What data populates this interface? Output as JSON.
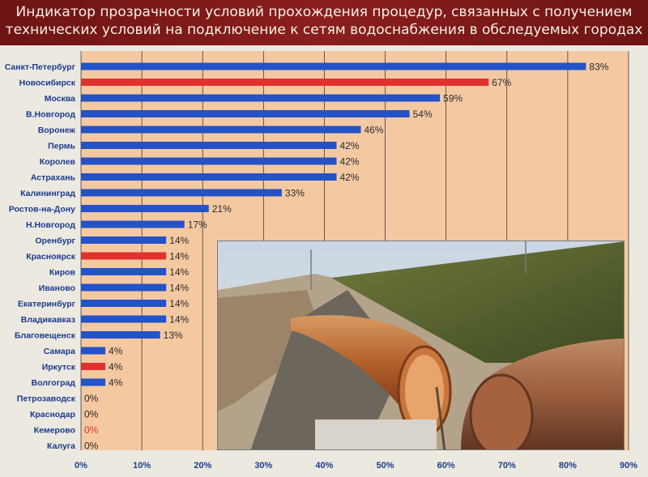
{
  "title_lines": [
    "Индикатор прозрачности условий прохождения процедур, связанных с получением",
    "технических условий на подключение к сетям водоснабжения в обследуемых городах"
  ],
  "colors": {
    "banner": "#7d1a1a",
    "plot_bg": "#f4c9a2",
    "bar_default": "#2452c7",
    "bar_highlight": "#e0312f",
    "label_highlight": "#e0312f"
  },
  "photo": {
    "icon": "water-pipe-trench-photo"
  },
  "chart_data": {
    "type": "bar",
    "orientation": "horizontal",
    "categories": [
      "Санкт-Петербург",
      "Новосибирск",
      "Москва",
      "В.Новгород",
      "Воронеж",
      "Пермь",
      "Королев",
      "Астрахань",
      "Калининград",
      "Ростов-на-Дону",
      "Н.Новгород",
      "Оренбург",
      "Красноярск",
      "Киров",
      "Иваново",
      "Екатеринбург",
      "Владикавказ",
      "Благовещенск",
      "Самара",
      "Иркутск",
      "Волгоград",
      "Петрозаводск",
      "Краснодар",
      "Кемерово",
      "Калуга"
    ],
    "values": [
      83,
      67,
      59,
      54,
      46,
      42,
      42,
      42,
      33,
      21,
      17,
      14,
      14,
      14,
      14,
      14,
      14,
      13,
      4,
      4,
      4,
      0,
      0,
      0,
      0
    ],
    "value_labels": [
      "83%",
      "67%",
      "59%",
      "54%",
      "46%",
      "42%",
      "42%",
      "42%",
      "33%",
      "21%",
      "17%",
      "14%",
      "14%",
      "14%",
      "14%",
      "14%",
      "14%",
      "13%",
      "4%",
      "4%",
      "4%",
      "0%",
      "0%",
      "0%",
      "0%"
    ],
    "highlighted": [
      "Новосибирск",
      "Красноярск",
      "Иркутск",
      "Кемерово"
    ],
    "xlim": [
      0,
      90
    ],
    "xticks": [
      "0%",
      "10%",
      "20%",
      "30%",
      "40%",
      "50%",
      "60%",
      "70%",
      "80%",
      "90%"
    ],
    "grid": "vertical",
    "xlabel": "",
    "ylabel": ""
  }
}
